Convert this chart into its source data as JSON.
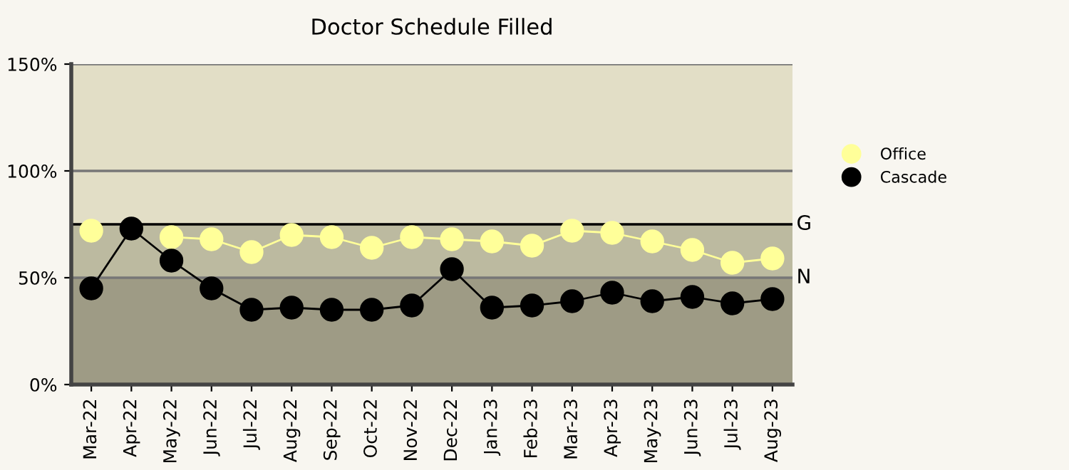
{
  "chart_data": {
    "type": "line",
    "title": "Doctor Schedule Filled",
    "categories": [
      "Mar-22",
      "Apr-22",
      "May-22",
      "Jun-22",
      "Jul-22",
      "Aug-22",
      "Sep-22",
      "Oct-22",
      "Nov-22",
      "Dec-22",
      "Jan-23",
      "Feb-23",
      "Mar-23",
      "Apr-23",
      "May-23",
      "Jun-23",
      "Jul-23",
      "Aug-23"
    ],
    "series": [
      {
        "name": "Office",
        "color": "#ffff99",
        "values": [
          72,
          null,
          69,
          68,
          62,
          70,
          69,
          64,
          69,
          68,
          67,
          65,
          72,
          71,
          67,
          63,
          57,
          59
        ]
      },
      {
        "name": "Cascade",
        "color": "#000000",
        "values": [
          45,
          73,
          58,
          45,
          35,
          36,
          35,
          35,
          37,
          54,
          36,
          37,
          39,
          43,
          39,
          41,
          38,
          40
        ]
      }
    ],
    "ylim": [
      0,
      150
    ],
    "yticks": [
      {
        "value": 0,
        "label": "0%"
      },
      {
        "value": 50,
        "label": "50%"
      },
      {
        "value": 100,
        "label": "100%"
      },
      {
        "value": 150,
        "label": "150%"
      }
    ],
    "grid": "y",
    "legend": "right",
    "marker": "circle",
    "bands": [
      {
        "axis": "y",
        "from": 0,
        "to": 50,
        "color": "#9e9b85"
      },
      {
        "axis": "y",
        "from": 50,
        "to": 75,
        "color": "#bcbaa0"
      },
      {
        "axis": "y",
        "from": 75,
        "to": 150,
        "color": "#e2dec6"
      }
    ],
    "ref_lines": [
      {
        "axis": "y",
        "value": 75,
        "label": "G",
        "color": "#000000"
      },
      {
        "axis": "y",
        "value": 50,
        "label": "N",
        "color": "#777777"
      }
    ]
  }
}
